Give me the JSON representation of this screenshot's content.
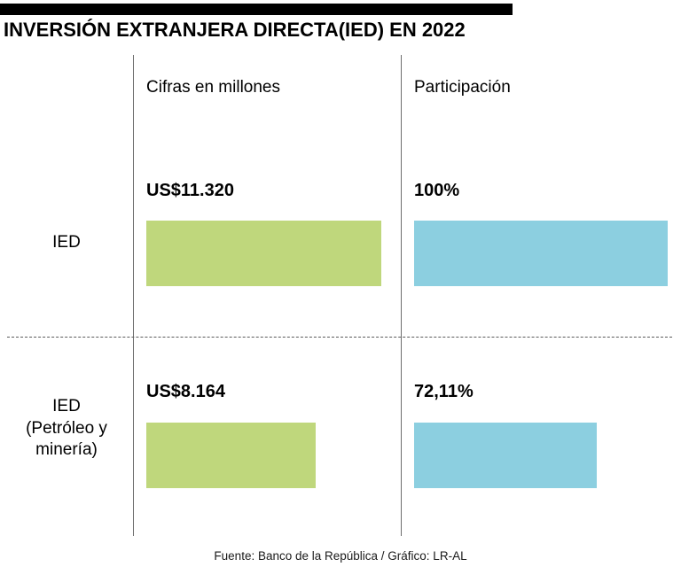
{
  "chart_data": {
    "type": "bar",
    "orientation": "horizontal",
    "title": "INVERSIÓN EXTRANJERA DIRECTA(IED) EN 2022",
    "categories": [
      "IED",
      "IED\n(Petróleo y\nminería)"
    ],
    "series": [
      {
        "name": "Cifras en millones",
        "values": [
          11320,
          8164
        ],
        "labels": [
          "US$11.320",
          "US$8.164"
        ],
        "color": "#bfd77c",
        "max": 11320
      },
      {
        "name": "Participación",
        "values": [
          100,
          72.11
        ],
        "labels": [
          "100%",
          "72,11%"
        ],
        "color": "#8ccfe0",
        "max": 100
      }
    ],
    "grid": false,
    "legend": "none",
    "source": "Fuente: Banco de la República / Gráfico: LR-AL"
  }
}
